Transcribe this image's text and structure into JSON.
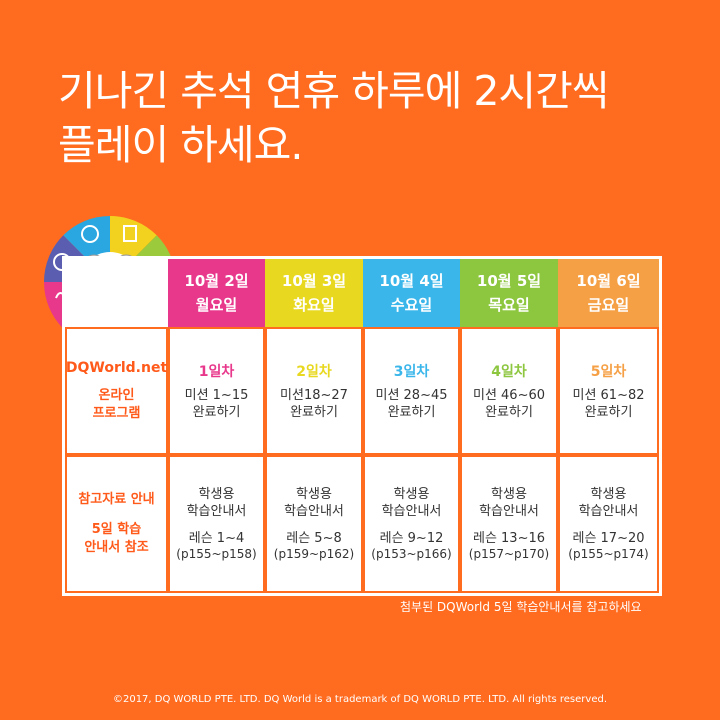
{
  "title": {
    "line1": "기나긴 추석 연휴 하루에 2시간씩",
    "line2": "플레이 하세요."
  },
  "header": [
    {
      "date": "10월 2일",
      "weekday": "월요일",
      "color": "#e8388c"
    },
    {
      "date": "10월 3일",
      "weekday": "화요일",
      "color": "#e8d820"
    },
    {
      "date": "10월 4일",
      "weekday": "수요일",
      "color": "#3ab6ea"
    },
    {
      "date": "10월 5일",
      "weekday": "목요일",
      "color": "#8dc63f"
    },
    {
      "date": "10월 6일",
      "weekday": "금요일",
      "color": "#f5a045"
    }
  ],
  "row1_label": {
    "brand": "DQWorld.net",
    "line1": "온라인",
    "line2": "프로그램"
  },
  "row2_label": {
    "line1": "참고자료 안내",
    "line2": "5일 학습",
    "line3": "안내서 참조"
  },
  "days": [
    {
      "day": "1일차",
      "mission1": "미션 1~15",
      "mission2": "완료하기",
      "guide1": "학생용",
      "guide2": "학습안내서",
      "lesson": "레슨 1~4",
      "pages": "(p155~p158)"
    },
    {
      "day": "2일차",
      "mission1": "미션18~27",
      "mission2": "완료하기",
      "guide1": "학생용",
      "guide2": "학습안내서",
      "lesson": "레슨 5~8",
      "pages": "(p159~p162)"
    },
    {
      "day": "3일차",
      "mission1": "미션 28~45",
      "mission2": "완료하기",
      "guide1": "학생용",
      "guide2": "학습안내서",
      "lesson": "레슨 9~12",
      "pages": "(p153~p166)"
    },
    {
      "day": "4일차",
      "mission1": "미션 46~60",
      "mission2": "완료하기",
      "guide1": "학생용",
      "guide2": "학습안내서",
      "lesson": "레슨 13~16",
      "pages": "(p157~p170)"
    },
    {
      "day": "5일차",
      "mission1": "미션 61~82",
      "mission2": "완료하기",
      "guide1": "학생용",
      "guide2": "학습안내서",
      "lesson": "레슨 17~20",
      "pages": "(p155~p174)"
    }
  ],
  "note": "첨부된 DQWorld 5일 학습안내서를 참고하세요",
  "copyright": "©2017, DQ WORLD PTE. LTD. DQ World is a trademark of DQ WORLD PTE. LTD. All rights reserved.",
  "logo_icons": [
    "globe-icon",
    "document-icon",
    "checklist-icon",
    "footprint-icon",
    "heart-hand-icon",
    "key-icon",
    "hand-icon",
    "pie-icon"
  ]
}
